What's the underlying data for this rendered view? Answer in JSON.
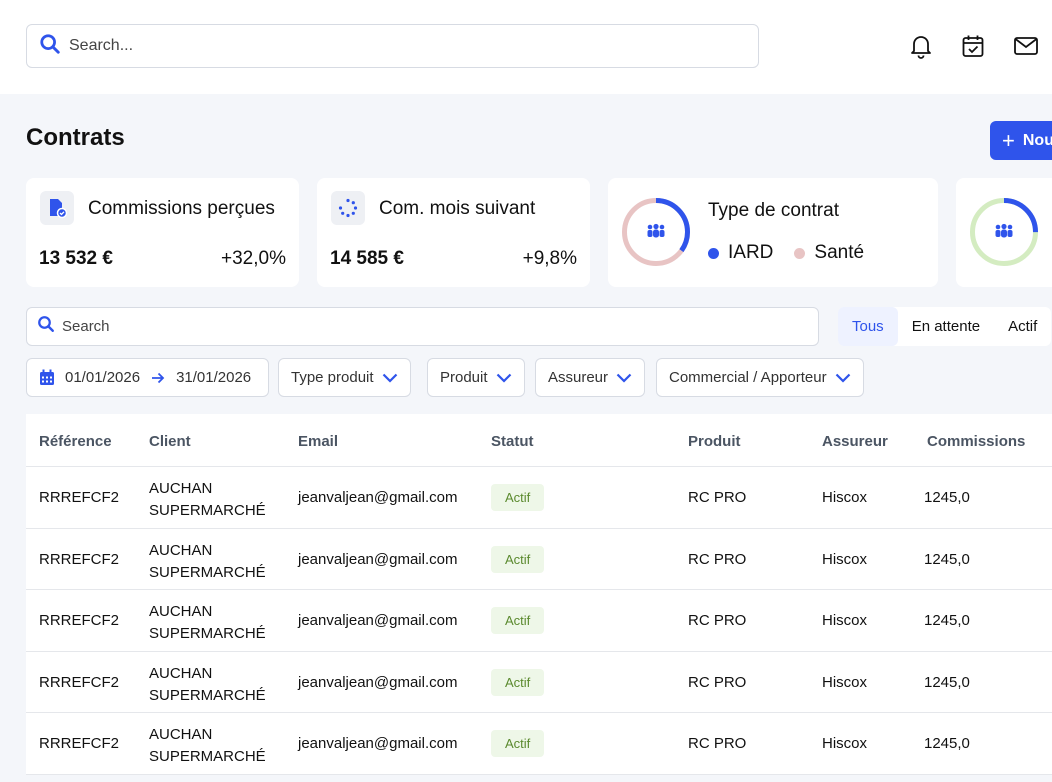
{
  "topbar": {
    "search_placeholder": "Search...",
    "icons": [
      "bell-icon",
      "calendar-check-icon",
      "mail-icon"
    ]
  },
  "page": {
    "title": "Contrats",
    "new_button_label": "Nou"
  },
  "cards": {
    "commissions": {
      "title": "Commissions perçues",
      "value": "13 532 €",
      "delta": "+32,0%",
      "icon": "document-check-icon"
    },
    "next_month": {
      "title": "Com. mois suivant",
      "value": "14 585 €",
      "delta": "+9,8%",
      "icon": "loader-icon"
    },
    "contract_type": {
      "title": "Type de contrat",
      "legend": [
        {
          "label": "IARD",
          "color": "#2f54eb"
        },
        {
          "label": "Santé",
          "color": "#e8c4c4"
        }
      ],
      "share_first": 0.35,
      "icon": "users-icon"
    },
    "fourth": {
      "icon": "users-icon",
      "share_first": 0.25,
      "colors": [
        "#2f54eb",
        "#d4ecc1"
      ]
    }
  },
  "filters": {
    "search_placeholder": "Search",
    "segments": [
      {
        "label": "Tous",
        "active": true
      },
      {
        "label": "En attente",
        "active": false
      },
      {
        "label": "Actif",
        "active": false
      }
    ],
    "date_from": "01/01/2026",
    "date_to": "31/01/2026",
    "dropdowns": [
      "Type produit",
      "Produit",
      "Assureur",
      "Commercial / Apporteur"
    ]
  },
  "table": {
    "columns": [
      "Référence",
      "Client",
      "Email",
      "Statut",
      "Produit",
      "Assureur",
      "Commissions"
    ],
    "rows": [
      {
        "ref": "RRREFCF2",
        "client_line1": "AUCHAN",
        "client_line2": "SUPERMARCHÉ",
        "email": "jeanvaljean@gmail.com",
        "status": "Actif",
        "product": "RC PRO",
        "insurer": "Hiscox",
        "commission": "1245,0"
      },
      {
        "ref": "RRREFCF2",
        "client_line1": "AUCHAN",
        "client_line2": "SUPERMARCHÉ",
        "email": "jeanvaljean@gmail.com",
        "status": "Actif",
        "product": "RC PRO",
        "insurer": "Hiscox",
        "commission": "1245,0"
      },
      {
        "ref": "RRREFCF2",
        "client_line1": "AUCHAN",
        "client_line2": "SUPERMARCHÉ",
        "email": "jeanvaljean@gmail.com",
        "status": "Actif",
        "product": "RC PRO",
        "insurer": "Hiscox",
        "commission": "1245,0"
      },
      {
        "ref": "RRREFCF2",
        "client_line1": "AUCHAN",
        "client_line2": "SUPERMARCHÉ",
        "email": "jeanvaljean@gmail.com",
        "status": "Actif",
        "product": "RC PRO",
        "insurer": "Hiscox",
        "commission": "1245,0"
      },
      {
        "ref": "RRREFCF2",
        "client_line1": "AUCHAN",
        "client_line2": "SUPERMARCHÉ",
        "email": "jeanvaljean@gmail.com",
        "status": "Actif",
        "product": "RC PRO",
        "insurer": "Hiscox",
        "commission": "1245,0"
      }
    ]
  }
}
